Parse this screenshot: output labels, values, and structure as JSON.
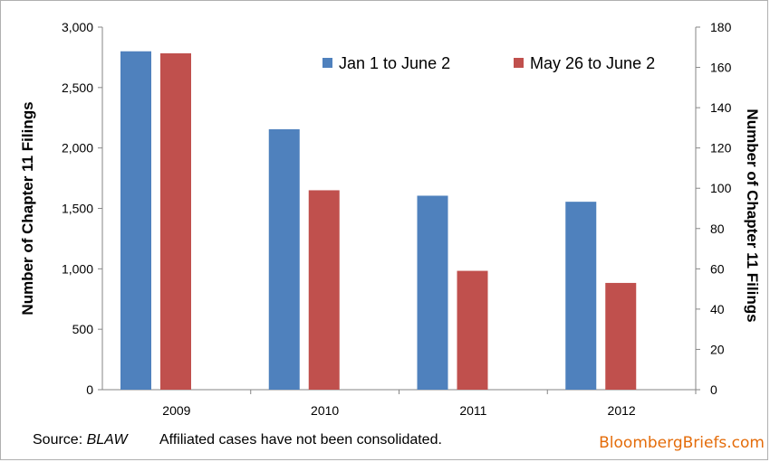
{
  "chart_data": {
    "type": "bar",
    "categories": [
      "2009",
      "2010",
      "2011",
      "2012"
    ],
    "series": [
      {
        "name": "Jan 1 to June 2",
        "values": [
          2800,
          2155,
          1605,
          1555
        ],
        "axis": "left",
        "color": "#4f81bd"
      },
      {
        "name": "May 26 to June 2",
        "values": [
          167,
          99,
          59,
          53
        ],
        "axis": "right",
        "color": "#c0504d"
      }
    ],
    "ylabel": "Number of Chapter 11 Filings",
    "y2label": "Number of Chapter 11 Filings",
    "ylim": [
      0,
      3000
    ],
    "y2lim": [
      0,
      180
    ],
    "yticks": [
      "0",
      "500",
      "1,000",
      "1,500",
      "2,000",
      "2,500",
      "3,000"
    ],
    "y2ticks": [
      "0",
      "20",
      "40",
      "60",
      "80",
      "100",
      "120",
      "140",
      "160",
      "180"
    ],
    "legend_position": "top-right",
    "grid": false
  },
  "footer": {
    "source_label": "Source: ",
    "source_name": "BLAW",
    "note": "Affiliated cases have not been consolidated.",
    "brand": "BloombergBriefs.com"
  },
  "colors": {
    "brand": "#e46c0a",
    "axis": "#868686"
  }
}
